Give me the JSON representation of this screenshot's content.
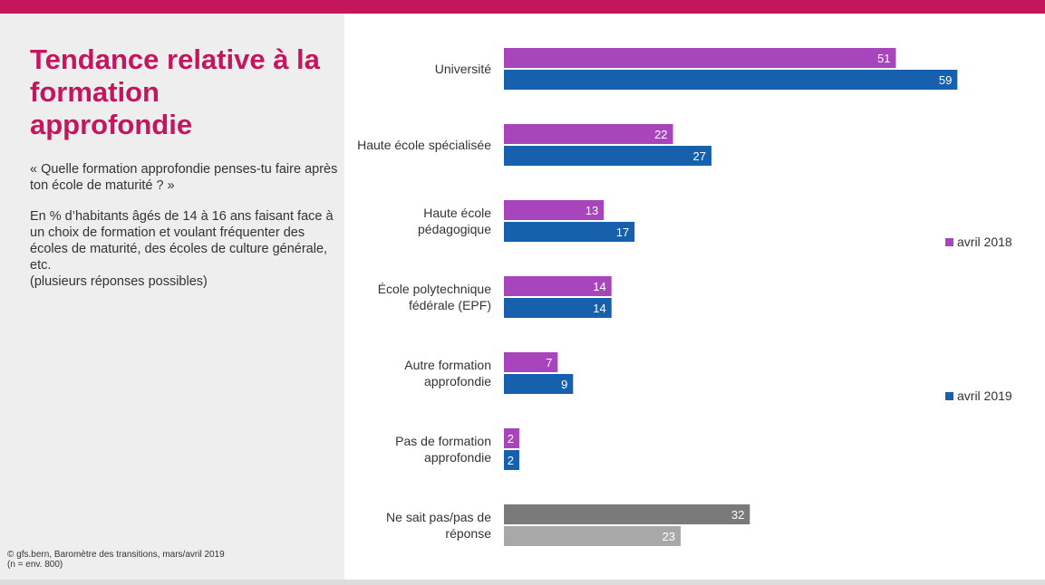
{
  "header": {
    "title": "Tendance relative à la formation approfondie",
    "question": "« Quelle formation approfondie penses-tu faire après ton école de maturité ? »",
    "description": "En % d’habitants âgés de 14 à 16 ans faisant face à un choix de formation et  voulant fréquenter des écoles de maturité, des écoles de culture générale, etc.\n(plusieurs réponses possibles)"
  },
  "footer": {
    "source": "© gfs.bern, Baromètre des transitions, mars/avril 2019\n(n = env. 800)"
  },
  "colors": {
    "accent": "#c3165d",
    "series_2018": "#a845bc",
    "series_2019": "#1660ad",
    "dontknow_2018": "#7a7a7a",
    "dontknow_2019": "#a8a8a8"
  },
  "chart_data": {
    "type": "bar",
    "orientation": "horizontal",
    "categories": [
      "Université",
      "Haute école spécialisée",
      "Haute école\npédagogique",
      "École polytechnique\nfédérale (EPF)",
      "Autre formation\napprofondie",
      "Pas de formation\napprofondie",
      "Ne sait pas/pas de\nréponse"
    ],
    "series": [
      {
        "name": "avril 2018",
        "values": [
          51,
          22,
          13,
          14,
          7,
          2,
          32
        ]
      },
      {
        "name": "avril 2019",
        "values": [
          59,
          27,
          17,
          14,
          9,
          2,
          23
        ]
      }
    ],
    "value_labels": true,
    "grid": false,
    "xlim": [
      0,
      70
    ],
    "legend_position": "right"
  }
}
